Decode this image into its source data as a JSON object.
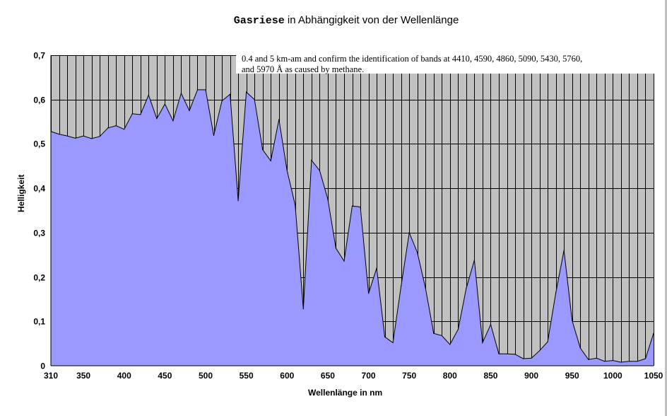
{
  "chart_data": {
    "type": "area",
    "title": {
      "mono": "Gasriese",
      "rest": " in Abhängigkeit von der Wellenlänge"
    },
    "xlabel": "Wellenlänge in nm",
    "ylabel": "Helligkeit",
    "xlim": [
      310,
      1050
    ],
    "ylim": [
      0,
      0.7
    ],
    "grid": true,
    "fill_color": "#9999ff",
    "plot_background": "#c0c0c0",
    "x_ticks": [
      "310",
      "350",
      "400",
      "450",
      "500",
      "550",
      "600",
      "650",
      "700",
      "750",
      "800",
      "850",
      "900",
      "950",
      "1000",
      "1050"
    ],
    "y_ticks": [
      "0",
      "0,1",
      "0,2",
      "0,3",
      "0,4",
      "0,5",
      "0,6",
      "0,7"
    ],
    "annotation": {
      "line1": "0.4 and 5 km-am and confirm the identification of bands at 4410, 4590, 4860, 5090, 5430, 5760,",
      "line2": "and 5970 Å as caused by methane."
    },
    "x": [
      310,
      320,
      330,
      340,
      350,
      360,
      370,
      380,
      390,
      400,
      410,
      420,
      430,
      440,
      450,
      460,
      470,
      480,
      490,
      500,
      510,
      520,
      530,
      540,
      550,
      560,
      570,
      580,
      590,
      600,
      610,
      620,
      630,
      640,
      650,
      660,
      670,
      680,
      690,
      700,
      710,
      720,
      730,
      740,
      750,
      760,
      770,
      780,
      790,
      800,
      810,
      820,
      830,
      840,
      850,
      860,
      870,
      880,
      890,
      900,
      910,
      920,
      930,
      940,
      950,
      960,
      970,
      980,
      990,
      1000,
      1010,
      1020,
      1030,
      1040,
      1050
    ],
    "values": [
      0.528,
      0.522,
      0.518,
      0.513,
      0.518,
      0.512,
      0.517,
      0.536,
      0.541,
      0.533,
      0.568,
      0.566,
      0.61,
      0.557,
      0.59,
      0.552,
      0.614,
      0.575,
      0.622,
      0.622,
      0.519,
      0.597,
      0.612,
      0.372,
      0.617,
      0.6,
      0.487,
      0.462,
      0.555,
      0.44,
      0.362,
      0.128,
      0.463,
      0.44,
      0.376,
      0.265,
      0.236,
      0.36,
      0.358,
      0.163,
      0.22,
      0.065,
      0.052,
      0.18,
      0.3,
      0.255,
      0.175,
      0.073,
      0.068,
      0.048,
      0.082,
      0.175,
      0.238,
      0.052,
      0.093,
      0.027,
      0.027,
      0.026,
      0.016,
      0.017,
      0.034,
      0.054,
      0.165,
      0.26,
      0.102,
      0.04,
      0.014,
      0.017,
      0.01,
      0.012,
      0.008,
      0.01,
      0.01,
      0.016,
      0.073
    ]
  }
}
